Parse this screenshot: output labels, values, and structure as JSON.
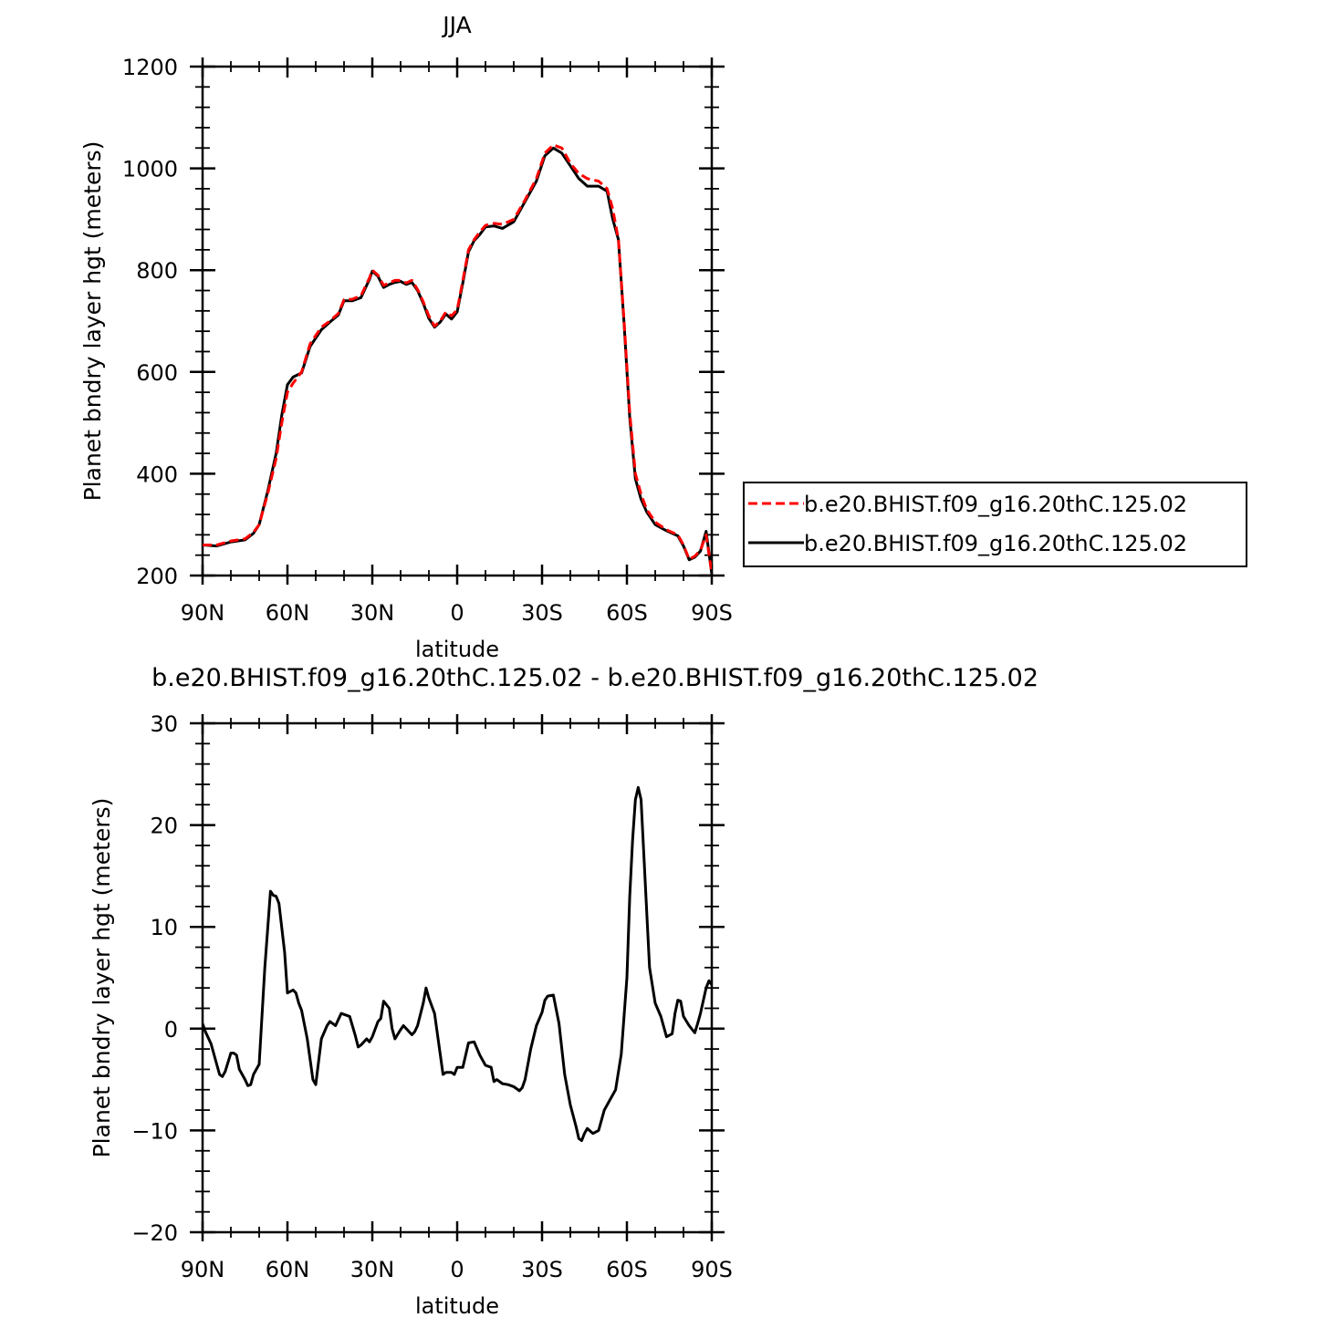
{
  "chart_data": [
    {
      "type": "line",
      "title": "JJA",
      "xlabel": "latitude",
      "ylabel": "Planet bndry layer hgt (meters)",
      "xlim": [
        -90,
        90
      ],
      "ylim": [
        200,
        1200
      ],
      "xticks": [
        -90,
        -60,
        -30,
        0,
        30,
        60,
        90
      ],
      "xtick_labels": [
        "90N",
        "60N",
        "30N",
        "0",
        "30S",
        "60S",
        "90S"
      ],
      "yticks": [
        200,
        400,
        600,
        800,
        1000,
        1200
      ],
      "ytick_labels": [
        "200",
        "400",
        "600",
        "800",
        "1000",
        "1200"
      ],
      "legend": "right",
      "x": [
        -90,
        -85,
        -80,
        -75,
        -72,
        -70,
        -67,
        -64,
        -62,
        -60,
        -58,
        -55,
        -52,
        -48,
        -45,
        -42,
        -40,
        -37,
        -34,
        -31,
        -30,
        -28,
        -26,
        -24,
        -22,
        -20,
        -18,
        -16,
        -14,
        -12,
        -10,
        -8,
        -6,
        -4,
        -2,
        0,
        2,
        4,
        6,
        8,
        10,
        13,
        16,
        20,
        24,
        28,
        31,
        34,
        37,
        40,
        43,
        46,
        50,
        53,
        55,
        57,
        59,
        61,
        63,
        65,
        67,
        70,
        74,
        78,
        80,
        82,
        84,
        86,
        88,
        90
      ],
      "series": [
        {
          "name": "b.e20.BHIST.f09_g16.20thC.125.02",
          "color": "#ff0000",
          "dash": "dashed",
          "values": [
            260,
            260,
            268,
            272,
            285,
            300,
            360,
            430,
            500,
            560,
            578,
            600,
            655,
            688,
            700,
            715,
            742,
            743,
            750,
            785,
            800,
            790,
            770,
            775,
            780,
            780,
            775,
            780,
            762,
            738,
            710,
            690,
            700,
            718,
            710,
            722,
            780,
            840,
            860,
            875,
            888,
            892,
            890,
            900,
            938,
            980,
            1030,
            1046,
            1040,
            1010,
            990,
            980,
            975,
            960,
            920,
            860,
            700,
            520,
            400,
            360,
            330,
            305,
            290,
            280,
            260,
            232,
            238,
            250,
            280,
            205
          ]
        },
        {
          "name": "b.e20.BHIST.f09_g16.20thC.125.02",
          "color": "#000000",
          "dash": "solid",
          "values": [
            260,
            258,
            266,
            270,
            283,
            300,
            365,
            440,
            515,
            575,
            590,
            598,
            650,
            683,
            698,
            712,
            740,
            740,
            746,
            782,
            798,
            788,
            766,
            772,
            776,
            778,
            772,
            776,
            760,
            735,
            705,
            688,
            698,
            714,
            704,
            718,
            775,
            836,
            858,
            870,
            885,
            887,
            882,
            895,
            935,
            975,
            1025,
            1040,
            1030,
            1005,
            980,
            965,
            965,
            955,
            900,
            860,
            695,
            510,
            390,
            350,
            325,
            300,
            288,
            278,
            258,
            231,
            236,
            248,
            287,
            203
          ]
        }
      ]
    },
    {
      "type": "line",
      "title": "b.e20.BHIST.f09_g16.20thC.125.02 - b.e20.BHIST.f09_g16.20thC.125.02",
      "xlabel": "latitude",
      "ylabel": "Planet bndry layer hgt (meters)",
      "xlim": [
        -90,
        90
      ],
      "ylim": [
        -20,
        30
      ],
      "xticks": [
        -90,
        -60,
        -30,
        0,
        30,
        60,
        90
      ],
      "xtick_labels": [
        "90N",
        "60N",
        "30N",
        "0",
        "30S",
        "60S",
        "90S"
      ],
      "yticks": [
        -20,
        -10,
        0,
        10,
        20,
        30
      ],
      "ytick_labels": [
        "−20",
        "−10",
        "0",
        "10",
        "20",
        "30"
      ],
      "x": [
        -90,
        -89,
        -87,
        -85,
        -84,
        -83,
        -82,
        -80,
        -79,
        -78,
        -77,
        -75,
        -74,
        -73,
        -72,
        -70,
        -68,
        -66,
        -65,
        -64,
        -63,
        -61,
        -60,
        -58,
        -57,
        -56,
        -55,
        -53,
        -51,
        -50,
        -48,
        -46,
        -45,
        -44,
        -43,
        -41,
        -40,
        -38,
        -36,
        -35,
        -34,
        -32,
        -31,
        -30,
        -28,
        -27,
        -26,
        -24,
        -23,
        -22,
        -20,
        -19,
        -18,
        -16,
        -15,
        -14,
        -12,
        -11,
        -10,
        -8,
        -6,
        -5,
        -4,
        -2,
        -1,
        0,
        2,
        3,
        4,
        6,
        8,
        10,
        12,
        13,
        14,
        16,
        18,
        20,
        22,
        23,
        24,
        26,
        28,
        30,
        31,
        32,
        34,
        36,
        38,
        40,
        42,
        43,
        44,
        45,
        46,
        48,
        50,
        51,
        52,
        54,
        56,
        58,
        60,
        61,
        62,
        63,
        64,
        65,
        66,
        68,
        70,
        72,
        74,
        76,
        77,
        78,
        79,
        80,
        82,
        84,
        85,
        86,
        88,
        89,
        90
      ],
      "series": [
        {
          "name": "",
          "color": "#000000",
          "dash": "solid",
          "values": [
            0.5,
            -0.3,
            -1.5,
            -3.5,
            -4.5,
            -4.7,
            -4.2,
            -2.4,
            -2.4,
            -2.6,
            -4,
            -5,
            -5.6,
            -5.5,
            -4.5,
            -3.5,
            6,
            13.5,
            13.1,
            13,
            12.3,
            7.5,
            3.5,
            3.8,
            3.5,
            2.5,
            1.8,
            -1,
            -5,
            -5.5,
            -1,
            0.3,
            0.7,
            0.5,
            0.3,
            1.5,
            1.4,
            1.2,
            -0.7,
            -1.8,
            -1.6,
            -1,
            -1.3,
            -0.8,
            0.7,
            1,
            2.7,
            2,
            0,
            -1,
            -0.1,
            0.3,
            0,
            -0.6,
            -0.3,
            0.3,
            2.5,
            4,
            3,
            1.5,
            -2.5,
            -4.5,
            -4.3,
            -4.3,
            -4.5,
            -3.8,
            -3.8,
            -2.6,
            -1.4,
            -1.3,
            -2.6,
            -3.6,
            -3.8,
            -5.2,
            -5,
            -5.4,
            -5.5,
            -5.7,
            -6.1,
            -5.8,
            -5,
            -2,
            0.3,
            1.6,
            2.8,
            3.2,
            3.3,
            0.5,
            -4.5,
            -7.5,
            -9.6,
            -10.8,
            -11,
            -10.3,
            -9.8,
            -10.3,
            -10,
            -9,
            -8,
            -7,
            -6,
            -2.5,
            5,
            13,
            18.5,
            22.5,
            23.7,
            22.5,
            17,
            6,
            2.5,
            1.2,
            -0.8,
            -0.5,
            1.5,
            2.8,
            2.7,
            1.2,
            0.3,
            -0.4,
            0.5,
            1.5,
            4,
            4.7,
            4.3
          ]
        }
      ]
    }
  ]
}
